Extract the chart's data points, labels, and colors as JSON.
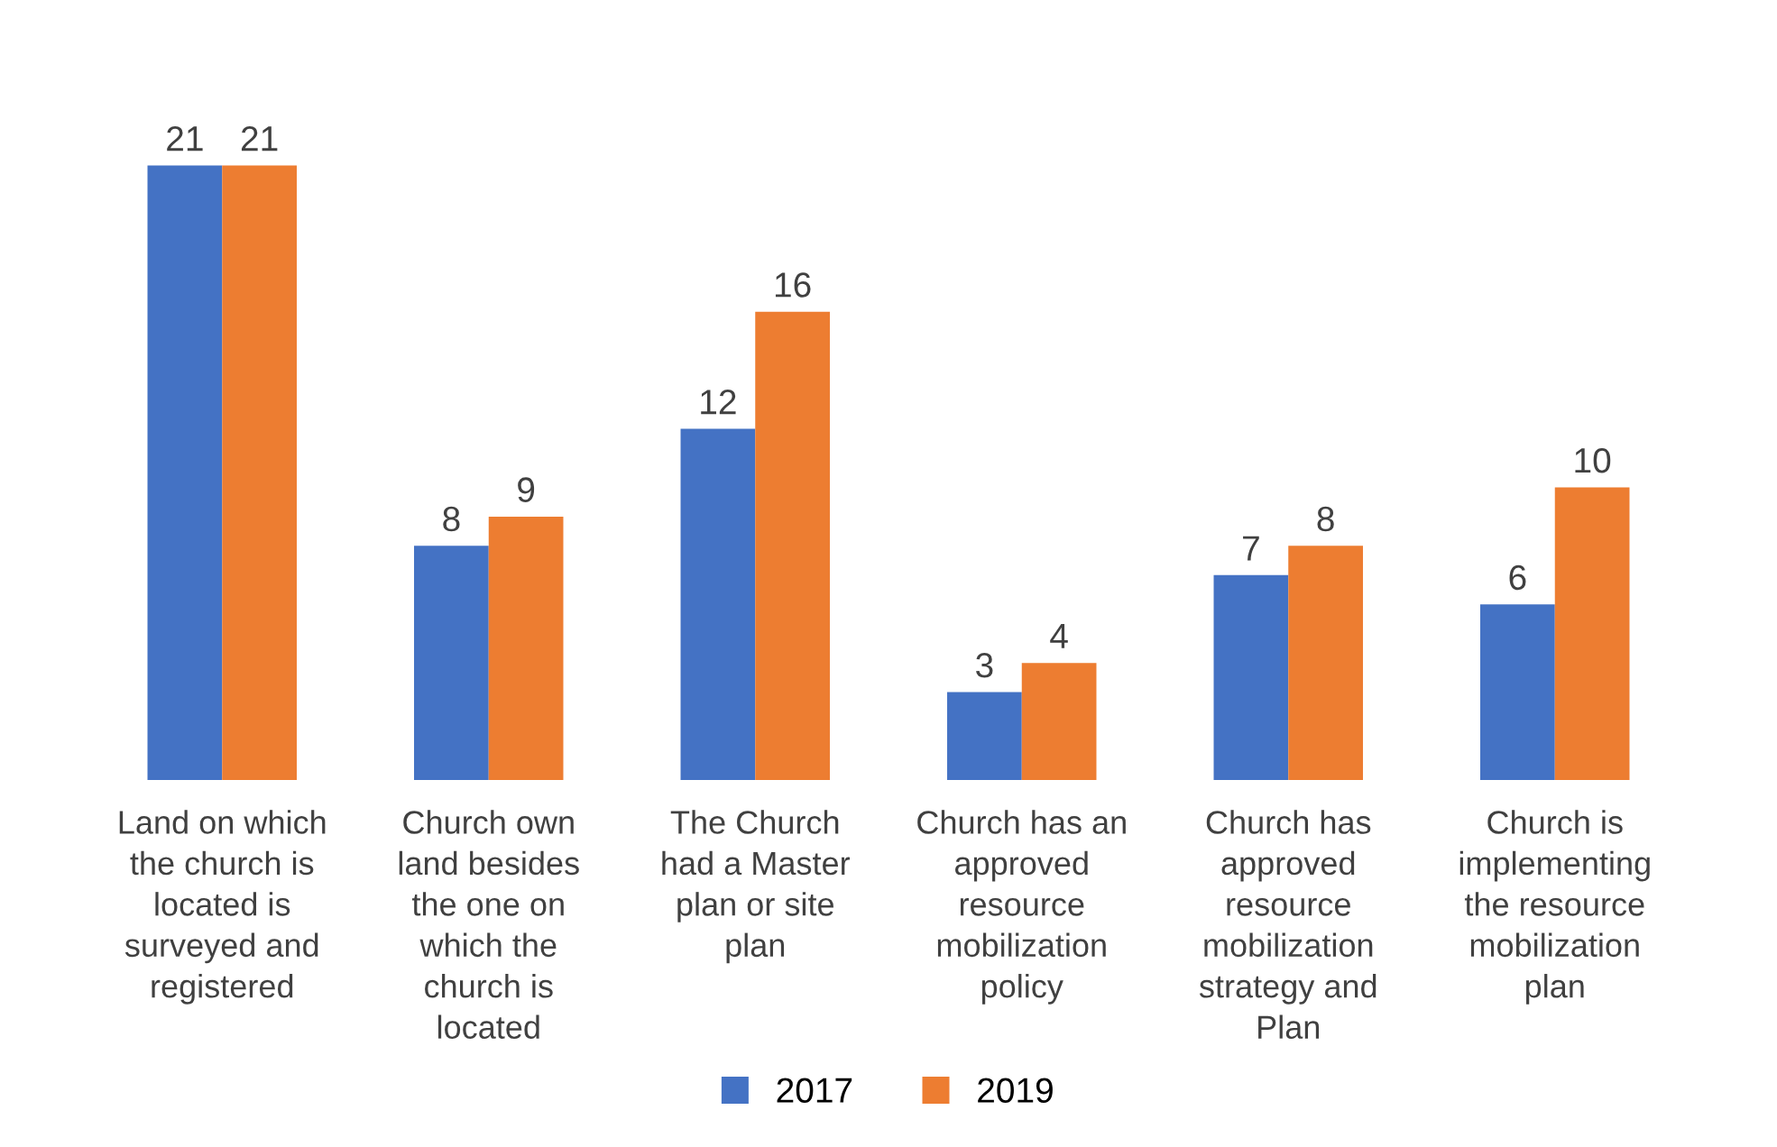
{
  "chart_data": {
    "type": "bar",
    "categories": [
      "Land on which\nthe church is\nlocated is\nsurveyed and\nregistered",
      "Church own\nland besides\nthe one on\nwhich the\nchurch is\nlocated",
      "The Church\nhad a Master\nplan or site\nplan",
      "Church has an\napproved\nresource\nmobilization\npolicy",
      "Church has\napproved\nresource\nmobilization\nstrategy and\nPlan",
      "Church is\nimplementing\nthe resource\nmobilization\nplan"
    ],
    "series": [
      {
        "name": "2017",
        "color": "#4472c4",
        "values": [
          21,
          8,
          12,
          3,
          7,
          6
        ]
      },
      {
        "name": "2019",
        "color": "#ed7d31",
        "values": [
          21,
          9,
          16,
          4,
          8,
          10
        ]
      }
    ],
    "data_labels": true,
    "legend": "bottom",
    "grid": false
  }
}
